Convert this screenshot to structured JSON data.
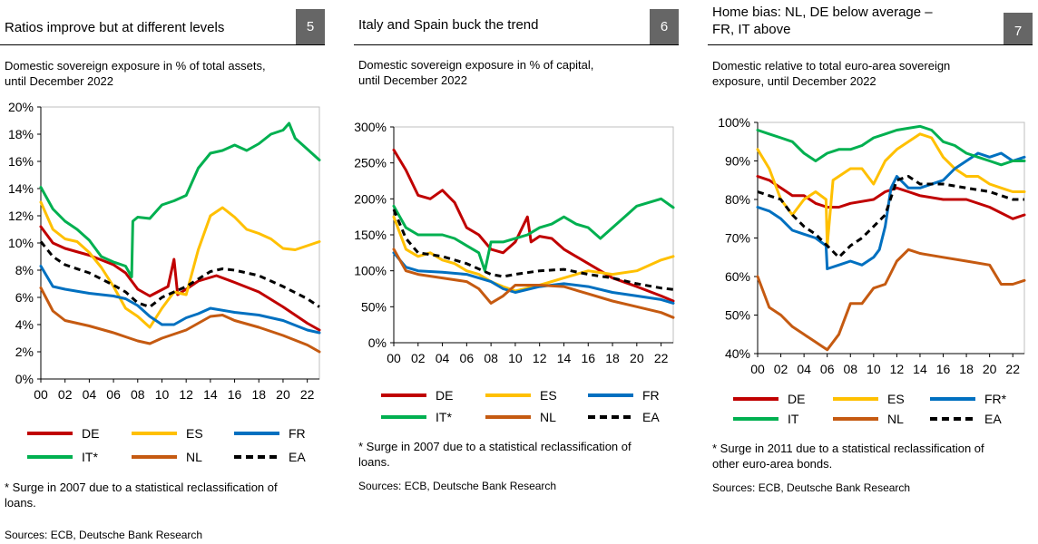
{
  "colors": {
    "DE": "#c00000",
    "ES": "#ffc000",
    "FR": "#0070c0",
    "IT": "#00b050",
    "NL": "#c55a11",
    "EA": "#000000",
    "badge": "#666666"
  },
  "panels": [
    {
      "title_lines": [
        "Ratios improve but at different levels"
      ],
      "number": "5",
      "subtitle_lines": [
        "Domestic sovereign exposure in % of total assets,",
        "until December 2022"
      ],
      "legend": [
        "DE",
        "ES",
        "FR",
        "IT*",
        "NL",
        "EA"
      ],
      "note_lines": [
        "* Surge in 2007 due to a statistical reclassification of",
        "loans."
      ],
      "source": "Sources: ECB, Deutsche Bank Research"
    },
    {
      "title_lines": [
        "Italy and Spain buck the trend"
      ],
      "number": "6",
      "subtitle_lines": [
        "Domestic sovereign exposure in % of capital,",
        "until December 2022"
      ],
      "legend": [
        "DE",
        "ES",
        "FR",
        "IT*",
        "NL",
        "EA"
      ],
      "note_lines": [
        "* Surge in 2007 due to a statistical reclassification of",
        "loans."
      ],
      "source": "Sources: ECB, Deutsche Bank Research"
    },
    {
      "title_lines": [
        "Home bias: NL, DE below average –",
        "FR, IT above"
      ],
      "number": "7",
      "subtitle_lines": [
        "Domestic relative to total euro-area sovereign",
        "exposure, until December 2022"
      ],
      "legend": [
        "DE",
        "ES",
        "FR*",
        "IT",
        "NL",
        "EA"
      ],
      "note_lines": [
        "* Surge in 2011 due to a statistical reclassification of",
        "other euro-area bonds."
      ],
      "source": "Sources: ECB, Deutsche Bank Research"
    }
  ],
  "chart_data": [
    {
      "type": "line",
      "title": "Ratios improve but at different levels",
      "ylabel": "Domestic sovereign exposure in % of total assets",
      "ylim": [
        0,
        20
      ],
      "yticks": [
        0,
        2,
        4,
        6,
        8,
        10,
        12,
        14,
        16,
        18,
        20
      ],
      "yticklabels": [
        "0%",
        "2%",
        "4%",
        "6%",
        "8%",
        "10%",
        "12%",
        "14%",
        "16%",
        "18%",
        "20%"
      ],
      "xlim": [
        2000,
        2023
      ],
      "xticks": [
        2000,
        2002,
        2004,
        2006,
        2008,
        2010,
        2012,
        2014,
        2016,
        2018,
        2020,
        2022
      ],
      "xticklabels": [
        "00",
        "02",
        "04",
        "06",
        "08",
        "10",
        "12",
        "14",
        "16",
        "18",
        "20",
        "22"
      ],
      "series": [
        {
          "name": "DE",
          "x": [
            2000,
            2001,
            2002,
            2004,
            2006,
            2007,
            2008,
            2009,
            2010.5,
            2011,
            2011.3,
            2012,
            2013,
            2014.5,
            2016,
            2018,
            2020,
            2022,
            2023
          ],
          "values": [
            11.2,
            10,
            9.6,
            9.1,
            8.4,
            7.8,
            6.6,
            6.1,
            6.8,
            8.8,
            6.2,
            6.6,
            7.2,
            7.6,
            7.1,
            6.4,
            5.3,
            4.1,
            3.6
          ]
        },
        {
          "name": "ES",
          "x": [
            2000,
            2001,
            2002,
            2003,
            2004,
            2005,
            2006,
            2007,
            2008,
            2009,
            2010,
            2011,
            2012,
            2013,
            2014,
            2015,
            2016,
            2017,
            2018,
            2019,
            2020,
            2021,
            2022,
            2023
          ],
          "values": [
            13,
            11,
            10.3,
            10.1,
            9.3,
            8.2,
            6.8,
            5.2,
            4.6,
            3.8,
            5.2,
            6.4,
            6.2,
            9.5,
            12,
            12.6,
            11.9,
            11,
            10.7,
            10.3,
            9.6,
            9.5,
            9.8,
            10.1
          ]
        },
        {
          "name": "FR",
          "x": [
            2000,
            2001,
            2002,
            2004,
            2006,
            2007,
            2008,
            2009,
            2010,
            2011,
            2012,
            2013,
            2014,
            2016,
            2018,
            2020,
            2022,
            2023
          ],
          "values": [
            8.3,
            6.8,
            6.6,
            6.3,
            6.1,
            5.9,
            5.4,
            4.6,
            4,
            4,
            4.5,
            4.8,
            5.2,
            4.9,
            4.7,
            4.3,
            3.6,
            3.4
          ]
        },
        {
          "name": "IT*",
          "x": [
            2000,
            2001,
            2002,
            2003,
            2004,
            2005,
            2006,
            2007,
            2007.5,
            2007.6,
            2008,
            2009,
            2010,
            2011,
            2012,
            2013,
            2014,
            2015,
            2016,
            2017,
            2018,
            2019,
            2020,
            2020.5,
            2021,
            2022,
            2023
          ],
          "values": [
            14.1,
            12.5,
            11.6,
            11,
            10.2,
            9,
            8.6,
            8.3,
            7.5,
            11.6,
            11.9,
            11.8,
            12.8,
            13.1,
            13.5,
            15.5,
            16.6,
            16.8,
            17.2,
            16.8,
            17.3,
            18,
            18.3,
            18.8,
            17.7,
            16.9,
            16.1
          ]
        },
        {
          "name": "NL",
          "x": [
            2000,
            2001,
            2002,
            2004,
            2006,
            2007,
            2008,
            2009,
            2010,
            2012,
            2014,
            2015,
            2016,
            2018,
            2020,
            2022,
            2023
          ],
          "values": [
            6.7,
            5,
            4.3,
            3.9,
            3.4,
            3.1,
            2.8,
            2.6,
            3,
            3.6,
            4.6,
            4.7,
            4.3,
            3.8,
            3.2,
            2.5,
            2
          ]
        },
        {
          "name": "EA",
          "x": [
            2000,
            2001,
            2002,
            2004,
            2006,
            2007,
            2008,
            2009,
            2010,
            2012,
            2014,
            2015,
            2016,
            2018,
            2020,
            2022,
            2023
          ],
          "values": [
            10.1,
            9,
            8.4,
            7.8,
            6.9,
            6.4,
            5.6,
            5.3,
            6,
            6.8,
            7.9,
            8.1,
            8,
            7.6,
            6.8,
            5.9,
            5.3
          ]
        }
      ]
    },
    {
      "type": "line",
      "title": "Italy and Spain buck the trend",
      "ylabel": "Domestic sovereign exposure in % of capital",
      "ylim": [
        0,
        300
      ],
      "yticks": [
        0,
        50,
        100,
        150,
        200,
        250,
        300
      ],
      "yticklabels": [
        "0%",
        "50%",
        "100%",
        "150%",
        "200%",
        "250%",
        "300%"
      ],
      "xlim": [
        2000,
        2023
      ],
      "xticks": [
        2000,
        2002,
        2004,
        2006,
        2008,
        2010,
        2012,
        2014,
        2016,
        2018,
        2020,
        2022
      ],
      "xticklabels": [
        "00",
        "02",
        "04",
        "06",
        "08",
        "10",
        "12",
        "14",
        "16",
        "18",
        "20",
        "22"
      ],
      "series": [
        {
          "name": "DE",
          "x": [
            2000,
            2001,
            2002,
            2003,
            2004,
            2005,
            2006,
            2007,
            2008,
            2009,
            2010,
            2011,
            2011.3,
            2012,
            2013,
            2014,
            2016,
            2018,
            2020,
            2022,
            2023
          ],
          "values": [
            268,
            240,
            205,
            200,
            212,
            195,
            160,
            150,
            130,
            125,
            140,
            175,
            140,
            148,
            145,
            130,
            110,
            90,
            78,
            65,
            58
          ]
        },
        {
          "name": "ES",
          "x": [
            2000,
            2001,
            2002,
            2003,
            2004,
            2005,
            2006,
            2007,
            2008,
            2009,
            2010,
            2012,
            2014,
            2016,
            2018,
            2020,
            2022,
            2023
          ],
          "values": [
            175,
            130,
            120,
            125,
            115,
            110,
            100,
            95,
            85,
            78,
            72,
            80,
            90,
            100,
            95,
            100,
            115,
            120
          ]
        },
        {
          "name": "FR",
          "x": [
            2000,
            2001,
            2002,
            2004,
            2006,
            2008,
            2009,
            2010,
            2012,
            2014,
            2016,
            2018,
            2020,
            2022,
            2023
          ],
          "values": [
            125,
            105,
            100,
            98,
            95,
            85,
            75,
            70,
            78,
            82,
            78,
            70,
            65,
            60,
            55
          ]
        },
        {
          "name": "IT*",
          "x": [
            2000,
            2001,
            2002,
            2003,
            2004,
            2005,
            2006,
            2007,
            2007.5,
            2008,
            2009,
            2010,
            2011,
            2012,
            2013,
            2014,
            2015,
            2016,
            2017,
            2018,
            2019,
            2020,
            2021,
            2022,
            2023
          ],
          "values": [
            190,
            160,
            150,
            150,
            150,
            145,
            135,
            125,
            100,
            140,
            140,
            145,
            150,
            160,
            165,
            175,
            165,
            160,
            145,
            160,
            175,
            190,
            195,
            200,
            188
          ]
        },
        {
          "name": "NL",
          "x": [
            2000,
            2001,
            2002,
            2004,
            2006,
            2007,
            2008,
            2009,
            2010,
            2012,
            2014,
            2016,
            2018,
            2020,
            2022,
            2023
          ],
          "values": [
            130,
            100,
            95,
            90,
            85,
            75,
            55,
            65,
            80,
            80,
            78,
            68,
            58,
            50,
            42,
            35
          ]
        },
        {
          "name": "EA",
          "x": [
            2000,
            2001,
            2002,
            2004,
            2006,
            2008,
            2009,
            2010,
            2012,
            2014,
            2016,
            2018,
            2020,
            2022,
            2023
          ],
          "values": [
            185,
            145,
            125,
            120,
            110,
            95,
            92,
            95,
            100,
            102,
            95,
            90,
            82,
            76,
            74
          ]
        }
      ]
    },
    {
      "type": "line",
      "title": "Home bias: NL, DE below average – FR, IT above",
      "ylabel": "Domestic relative to total euro-area sovereign exposure",
      "ylim": [
        40,
        100
      ],
      "yticks": [
        40,
        50,
        60,
        70,
        80,
        90,
        100
      ],
      "yticklabels": [
        "40%",
        "50%",
        "60%",
        "70%",
        "80%",
        "90%",
        "100%"
      ],
      "xlim": [
        2000,
        2023
      ],
      "xticks": [
        2000,
        2002,
        2004,
        2006,
        2008,
        2010,
        2012,
        2014,
        2016,
        2018,
        2020,
        2022
      ],
      "xticklabels": [
        "00",
        "02",
        "04",
        "06",
        "08",
        "10",
        "12",
        "14",
        "16",
        "18",
        "20",
        "22"
      ],
      "series": [
        {
          "name": "DE",
          "x": [
            2000,
            2001,
            2002,
            2003,
            2004,
            2005,
            2006,
            2007,
            2008,
            2010,
            2011,
            2012,
            2013,
            2014,
            2016,
            2018,
            2020,
            2022,
            2023
          ],
          "values": [
            86,
            85,
            83,
            81,
            81,
            79,
            78,
            78,
            79,
            80,
            82,
            83,
            82,
            81,
            80,
            80,
            78,
            75,
            76
          ]
        },
        {
          "name": "ES",
          "x": [
            2000,
            2001,
            2002,
            2003,
            2004,
            2005,
            2005.9,
            2006,
            2006.5,
            2007,
            2008,
            2009,
            2010,
            2011,
            2012,
            2013,
            2014,
            2015,
            2016,
            2017,
            2018,
            2019,
            2020,
            2021,
            2022,
            2023
          ],
          "values": [
            93,
            88,
            80,
            76,
            80,
            82,
            80,
            68,
            85,
            86,
            88,
            88,
            84,
            90,
            93,
            95,
            97,
            96,
            91,
            88,
            86,
            86,
            84,
            83,
            82,
            82
          ]
        },
        {
          "name": "FR*",
          "x": [
            2000,
            2001,
            2002,
            2003,
            2004,
            2005,
            2005.9,
            2006,
            2007,
            2008,
            2009,
            2010,
            2010.5,
            2011,
            2011.5,
            2012,
            2013,
            2014,
            2016,
            2017,
            2018,
            2019,
            2020,
            2021,
            2022,
            2023
          ],
          "values": [
            78,
            77,
            75,
            72,
            71,
            70,
            68,
            62,
            63,
            64,
            63,
            65,
            67,
            73,
            83,
            86,
            83,
            83,
            85,
            88,
            90,
            92,
            91,
            92,
            90,
            91
          ]
        },
        {
          "name": "IT",
          "x": [
            2000,
            2001,
            2002,
            2003,
            2004,
            2005,
            2006,
            2007,
            2008,
            2009,
            2010,
            2011,
            2012,
            2013,
            2014,
            2015,
            2016,
            2017,
            2018,
            2019,
            2020,
            2021,
            2022,
            2023
          ],
          "values": [
            98,
            97,
            96,
            95,
            92,
            90,
            92,
            93,
            93,
            94,
            96,
            97,
            98,
            98.5,
            99,
            98,
            95,
            94,
            92,
            91,
            90,
            89,
            90,
            90
          ]
        },
        {
          "name": "NL",
          "x": [
            2000,
            2001,
            2002,
            2003,
            2004,
            2005,
            2006,
            2007,
            2008,
            2009,
            2010,
            2011,
            2012,
            2013,
            2014,
            2016,
            2018,
            2020,
            2021,
            2022,
            2023
          ],
          "values": [
            60,
            52,
            50,
            47,
            45,
            43,
            41,
            45,
            53,
            53,
            57,
            58,
            64,
            67,
            66,
            65,
            64,
            63,
            58,
            58,
            59
          ]
        },
        {
          "name": "EA",
          "x": [
            2000,
            2001,
            2002,
            2003,
            2004,
            2005,
            2006,
            2007,
            2008,
            2009,
            2010,
            2011,
            2012,
            2013,
            2014,
            2016,
            2018,
            2020,
            2022,
            2023
          ],
          "values": [
            82,
            81,
            80,
            76,
            73,
            71,
            68,
            65,
            68,
            70,
            73,
            76,
            85,
            86,
            84,
            84,
            83,
            82,
            80,
            80
          ]
        }
      ]
    }
  ]
}
